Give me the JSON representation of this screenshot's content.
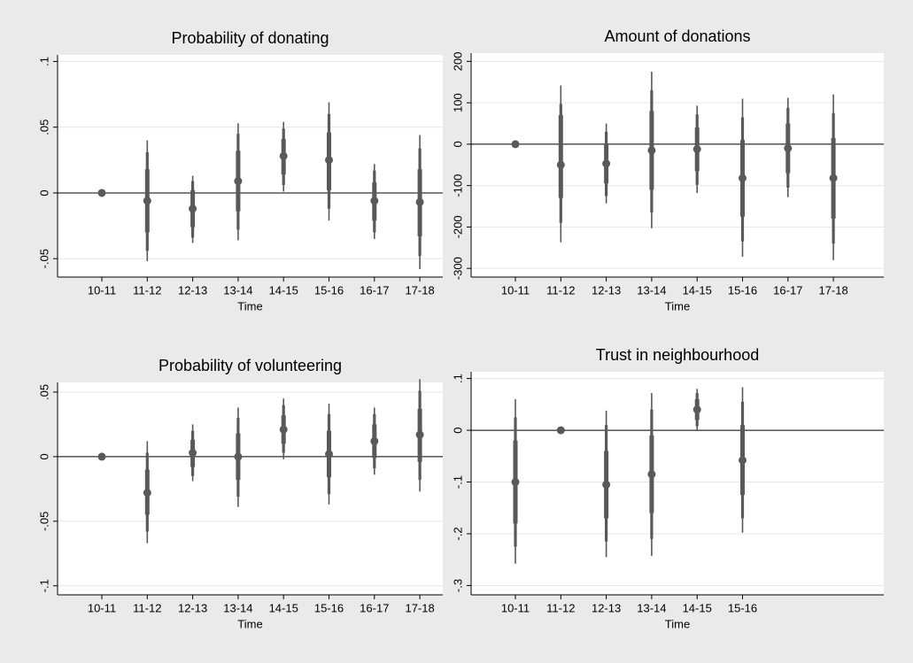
{
  "chart_data": [
    {
      "type": "coefplot",
      "title": "Probability of donating",
      "xlabel": "Time",
      "color": "#595959",
      "refline": 0,
      "grid": true,
      "categories": [
        "10-11",
        "11-12",
        "12-13",
        "13-14",
        "14-15",
        "15-16",
        "16-17",
        "17-18"
      ],
      "values": [
        0,
        -0.006,
        -0.012,
        0.009,
        0.028,
        0.025,
        -0.006,
        -0.007
      ],
      "ci_outer": [
        null,
        [
          -0.052,
          0.04
        ],
        [
          -0.038,
          0.013
        ],
        [
          -0.036,
          0.053
        ],
        [
          0.001,
          0.054
        ],
        [
          -0.021,
          0.069
        ],
        [
          -0.035,
          0.022
        ],
        [
          -0.058,
          0.044
        ]
      ],
      "ci_mid": [
        null,
        [
          -0.044,
          0.031
        ],
        [
          -0.034,
          0.009
        ],
        [
          -0.028,
          0.045
        ],
        [
          0.006,
          0.049
        ],
        [
          -0.012,
          0.06
        ],
        [
          -0.03,
          0.017
        ],
        [
          -0.048,
          0.034
        ]
      ],
      "ci_inner": [
        null,
        [
          -0.03,
          0.018
        ],
        [
          -0.026,
          0.002
        ],
        [
          -0.014,
          0.032
        ],
        [
          0.014,
          0.041
        ],
        [
          0.002,
          0.046
        ],
        [
          -0.021,
          0.008
        ],
        [
          -0.033,
          0.018
        ]
      ],
      "ylim": [
        -0.064,
        0.105
      ],
      "yticks": [
        {
          "value": -0.05,
          "label": "-.05"
        },
        0,
        {
          "value": 0.05,
          "label": ".05"
        },
        {
          "value": 0.1,
          "label": ".1"
        }
      ]
    },
    {
      "type": "coefplot",
      "title": "Amount of donations",
      "xlabel": "Time",
      "color": "#595959",
      "refline": 0,
      "grid": true,
      "categories": [
        "10-11",
        "11-12",
        "12-13",
        "13-14",
        "14-15",
        "15-16",
        "16-17",
        "17-18"
      ],
      "values": [
        0,
        -50,
        -47,
        -15,
        -12,
        -82,
        -10,
        -82
      ],
      "ci_outer": [
        null,
        [
          -237,
          142
        ],
        [
          -143,
          50
        ],
        [
          -203,
          175
        ],
        [
          -118,
          93
        ],
        [
          -272,
          110
        ],
        [
          -128,
          112
        ],
        [
          -280,
          120
        ]
      ],
      "ci_mid": [
        null,
        [
          -190,
          97
        ],
        [
          -125,
          30
        ],
        [
          -165,
          130
        ],
        [
          -98,
          72
        ],
        [
          -235,
          65
        ],
        [
          -105,
          88
        ],
        [
          -240,
          75
        ]
      ],
      "ci_inner": [
        null,
        [
          -130,
          70
        ],
        [
          -95,
          0
        ],
        [
          -110,
          80
        ],
        [
          -65,
          40
        ],
        [
          -175,
          10
        ],
        [
          -70,
          50
        ],
        [
          -180,
          15
        ]
      ],
      "ylim": [
        -321,
        220
      ],
      "yticks": [
        -300,
        -200,
        -100,
        0,
        100,
        200
      ]
    },
    {
      "type": "coefplot",
      "title": "Probability of volunteering",
      "xlabel": "Time",
      "color": "#595959",
      "refline": 0,
      "grid": true,
      "categories": [
        "10-11",
        "11-12",
        "12-13",
        "13-14",
        "14-15",
        "15-16",
        "16-17",
        "17-18"
      ],
      "values": [
        0,
        -0.028,
        0.003,
        0,
        0.021,
        0.002,
        0.012,
        0.017
      ],
      "ci_outer": [
        null,
        [
          -0.067,
          0.012
        ],
        [
          -0.019,
          0.025
        ],
        [
          -0.039,
          0.038
        ],
        [
          -0.002,
          0.045
        ],
        [
          -0.037,
          0.041
        ],
        [
          -0.014,
          0.038
        ],
        [
          -0.027,
          0.06
        ]
      ],
      "ci_mid": [
        null,
        [
          -0.058,
          0.003
        ],
        [
          -0.015,
          0.02
        ],
        [
          -0.031,
          0.03
        ],
        [
          0.003,
          0.04
        ],
        [
          -0.029,
          0.033
        ],
        [
          -0.009,
          0.033
        ],
        [
          -0.018,
          0.051
        ]
      ],
      "ci_inner": [
        null,
        [
          -0.045,
          -0.01
        ],
        [
          -0.008,
          0.013
        ],
        [
          -0.018,
          0.018
        ],
        [
          0.01,
          0.032
        ],
        [
          -0.016,
          0.02
        ],
        [
          -0.001,
          0.025
        ],
        [
          -0.004,
          0.037
        ]
      ],
      "ylim": [
        -0.107,
        0.0575
      ],
      "yticks": [
        {
          "value": -0.1,
          "label": "-.1"
        },
        {
          "value": -0.05,
          "label": "-.05"
        },
        0,
        {
          "value": 0.05,
          "label": ".05"
        }
      ]
    },
    {
      "type": "coefplot",
      "title": "Trust in neighbourhood",
      "xlabel": "Time",
      "color": "#595959",
      "refline": 0,
      "grid": true,
      "categories": [
        "10-11",
        "11-12",
        "12-13",
        "13-14",
        "14-15",
        "15-16"
      ],
      "values": [
        -0.1,
        0,
        -0.105,
        -0.085,
        0.04,
        -0.058
      ],
      "ci_outer": [
        [
          -0.258,
          0.06
        ],
        null,
        [
          -0.245,
          0.038
        ],
        [
          -0.243,
          0.072
        ],
        [
          0.0,
          0.08
        ],
        [
          -0.198,
          0.083
        ]
      ],
      "ci_mid": [
        [
          -0.225,
          0.025
        ],
        null,
        [
          -0.215,
          0.01
        ],
        [
          -0.21,
          0.04
        ],
        [
          0.008,
          0.072
        ],
        [
          -0.17,
          0.055
        ]
      ],
      "ci_inner": [
        [
          -0.18,
          -0.02
        ],
        null,
        [
          -0.17,
          -0.04
        ],
        [
          -0.16,
          -0.01
        ],
        [
          0.02,
          0.06
        ],
        [
          -0.125,
          0.01
        ]
      ],
      "ylim": [
        -0.318,
        0.113
      ],
      "yticks": [
        {
          "value": -0.3,
          "label": "-.3"
        },
        {
          "value": -0.2,
          "label": "-.2"
        },
        {
          "value": -0.1,
          "label": "-.1"
        },
        0,
        {
          "value": 0.1,
          "label": ".1"
        }
      ]
    }
  ]
}
